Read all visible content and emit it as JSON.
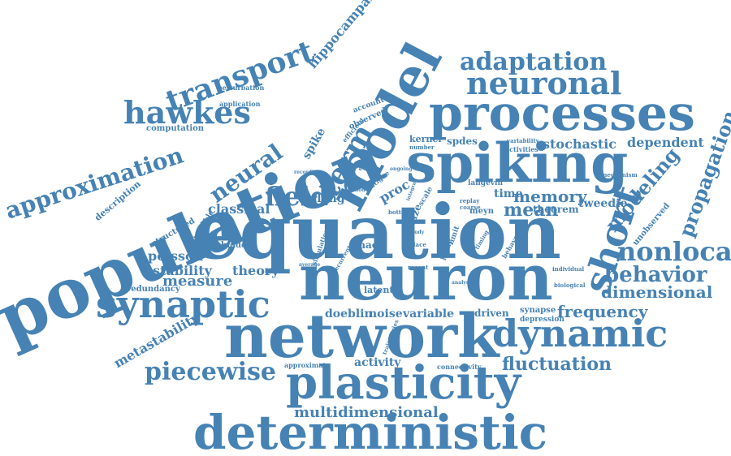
{
  "colors": {
    "word": "#4682b4",
    "background": "#ffffff"
  },
  "words": [
    "population",
    "equation",
    "neuron",
    "network",
    "spiking",
    "processes",
    "model",
    "deterministic",
    "plasticity",
    "synaptic",
    "dynamic",
    "neuronal",
    "transport",
    "hawkes",
    "piecewise",
    "approximation",
    "adaptation",
    "short",
    "nonlocal",
    "term",
    "field",
    "neural",
    "behavior",
    "modeling",
    "propagation",
    "frequency",
    "dimensional",
    "fluctuation",
    "memory",
    "mean",
    "stochastic",
    "dependent",
    "metastability",
    "measure",
    "multidimensional",
    "hippocampal",
    "classical",
    "poisson",
    "stability",
    "theory",
    "erlang",
    "time",
    "tweedie",
    "theorem",
    "description",
    "activity",
    "variable",
    "noise",
    "doeblin",
    "spike",
    "spdes",
    "kernel",
    "proc",
    "size",
    "chao",
    "latent",
    "driven",
    "synapse",
    "depression",
    "redundancy",
    "hidden",
    "structured",
    "metastable",
    "observed",
    "account",
    "efficient",
    "perturbation",
    "application",
    "computation",
    "unobserved",
    "approximate",
    "connectivity",
    "langevin",
    "meyn",
    "simulation",
    "leaky",
    "limit",
    "mechanism",
    "variability",
    "activities",
    "individual",
    "biological",
    "timing",
    "behave",
    "replay",
    "coarse",
    "analysis",
    "recent",
    "place",
    "recurrent",
    "average",
    "number",
    "example",
    "recording",
    "ongoing",
    "fatigue",
    "scale",
    "bottom",
    "trajectories",
    "method",
    "study",
    "integral"
  ]
}
